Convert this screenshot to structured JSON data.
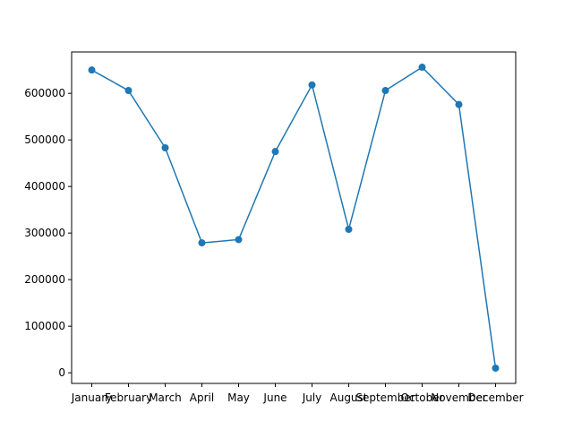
{
  "chart_data": {
    "type": "line",
    "title": "",
    "xlabel": "",
    "ylabel": "",
    "categories": [
      "January",
      "February",
      "March",
      "April",
      "May",
      "June",
      "July",
      "August",
      "September",
      "October",
      "November",
      "December"
    ],
    "series": [
      {
        "values": [
          650000,
          606000,
          483000,
          279000,
          286000,
          475000,
          618000,
          308000,
          606000,
          656000,
          576000,
          10000
        ],
        "color": "#1f77b4",
        "marker": "circle"
      }
    ],
    "ylim": [
      -22800,
      688800
    ],
    "yticks": [
      0,
      100000,
      200000,
      300000,
      400000,
      500000,
      600000
    ],
    "ytick_labels": [
      "0",
      "100000",
      "200000",
      "300000",
      "400000",
      "500000",
      "600000"
    ],
    "grid": false,
    "legend": "none"
  }
}
